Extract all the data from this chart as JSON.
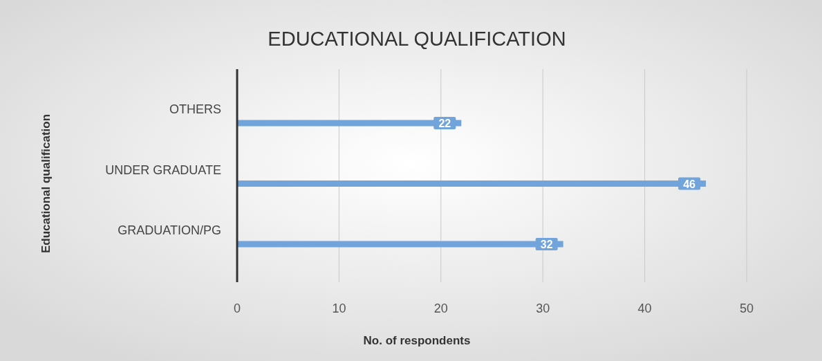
{
  "chart_data": {
    "type": "bar",
    "orientation": "horizontal",
    "title": "EDUCATIONAL QUALIFICATION",
    "xlabel": "No. of respondents",
    "ylabel": "Educational qualification",
    "categories": [
      "OTHERS",
      "UNDER GRADUATE",
      "GRADUATION/PG"
    ],
    "values": [
      22,
      46,
      32
    ],
    "color": "#70a4da",
    "xlim": [
      0,
      50
    ],
    "xticks": [
      0,
      10,
      20,
      30,
      40,
      50
    ],
    "grid": "x",
    "data_labels": true
  }
}
